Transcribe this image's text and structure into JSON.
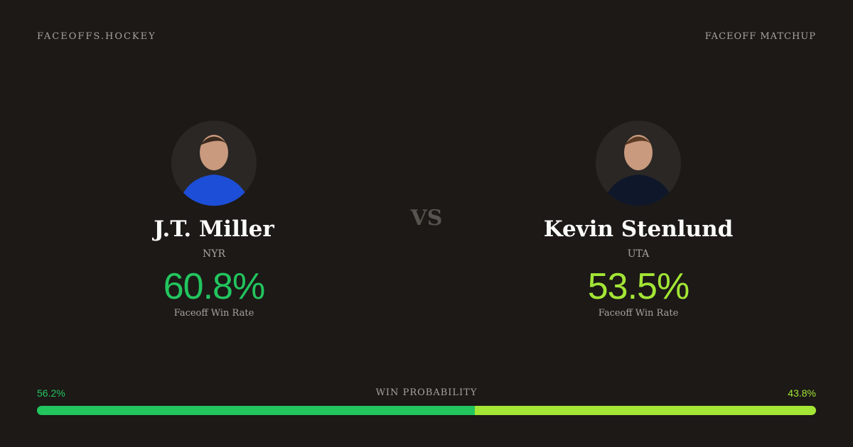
{
  "header": {
    "brand": "FACEOFFS.HOCKEY",
    "label": "FACEOFF MATCHUP"
  },
  "players": [
    {
      "name": "J.T. Miller",
      "team": "NYR",
      "win_rate": "60.8%",
      "rate_label": "Faceoff Win Rate",
      "color": "#22c55e"
    },
    {
      "name": "Kevin Stenlund",
      "team": "UTA",
      "win_rate": "53.5%",
      "rate_label": "Faceoff Win Rate",
      "color": "#a3e635"
    }
  ],
  "vs": "VS",
  "win_probability": {
    "label": "WIN PROBABILITY",
    "segments": [
      {
        "value": 56.2,
        "label": "56.2%",
        "color": "#22c55e"
      },
      {
        "value": 43.8,
        "label": "43.8%",
        "color": "#a3e635"
      }
    ]
  }
}
